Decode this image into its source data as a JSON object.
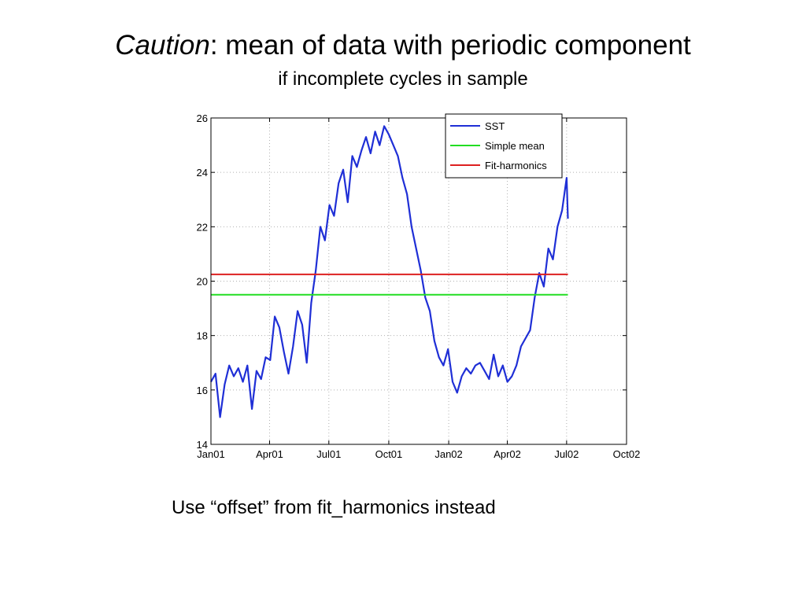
{
  "slide": {
    "title_italic": "Caution",
    "title_rest": ": mean of data with periodic component",
    "subtitle": "if incomplete cycles in sample",
    "note": "Use “offset” from fit_harmonics instead"
  },
  "chart_data": {
    "type": "line",
    "title": "",
    "xlabel": "",
    "ylabel": "",
    "xlim": [
      "Jan01",
      "Oct02"
    ],
    "ylim": [
      14,
      26
    ],
    "x_ticks": [
      "Jan01",
      "Apr01",
      "Jul01",
      "Oct01",
      "Jan02",
      "Apr02",
      "Jul02",
      "Oct02"
    ],
    "y_ticks": [
      14,
      16,
      18,
      20,
      22,
      24,
      26
    ],
    "grid": true,
    "legend_position": "top-right",
    "series": [
      {
        "name": "SST",
        "color": "#1f2fd6",
        "kind": "line",
        "x": [
          "2001-01-01",
          "2001-01-08",
          "2001-01-15",
          "2001-01-22",
          "2001-01-29",
          "2001-02-05",
          "2001-02-12",
          "2001-02-19",
          "2001-02-26",
          "2001-03-05",
          "2001-03-12",
          "2001-03-19",
          "2001-03-26",
          "2001-04-02",
          "2001-04-09",
          "2001-04-16",
          "2001-04-23",
          "2001-04-30",
          "2001-05-07",
          "2001-05-14",
          "2001-05-21",
          "2001-05-28",
          "2001-06-04",
          "2001-06-11",
          "2001-06-18",
          "2001-06-25",
          "2001-07-02",
          "2001-07-09",
          "2001-07-16",
          "2001-07-23",
          "2001-07-30",
          "2001-08-06",
          "2001-08-13",
          "2001-08-20",
          "2001-08-27",
          "2001-09-03",
          "2001-09-10",
          "2001-09-17",
          "2001-09-24",
          "2001-10-01",
          "2001-10-08",
          "2001-10-15",
          "2001-10-22",
          "2001-10-29",
          "2001-11-05",
          "2001-11-12",
          "2001-11-19",
          "2001-11-26",
          "2001-12-03",
          "2001-12-10",
          "2001-12-17",
          "2001-12-24",
          "2001-12-31",
          "2002-01-07",
          "2002-01-14",
          "2002-01-21",
          "2002-01-28",
          "2002-02-04",
          "2002-02-11",
          "2002-02-18",
          "2002-02-25",
          "2002-03-04",
          "2002-03-11",
          "2002-03-18",
          "2002-03-25",
          "2002-04-01",
          "2002-04-08",
          "2002-04-15",
          "2002-04-22",
          "2002-04-29",
          "2002-05-06",
          "2002-05-13",
          "2002-05-20",
          "2002-05-27",
          "2002-06-03",
          "2002-06-10",
          "2002-06-17",
          "2002-06-24",
          "2002-07-01",
          "2002-07-03"
        ],
        "values": [
          16.3,
          16.6,
          15.0,
          16.2,
          16.9,
          16.5,
          16.8,
          16.3,
          16.9,
          15.3,
          16.7,
          16.4,
          17.2,
          17.1,
          18.7,
          18.3,
          17.4,
          16.6,
          17.6,
          18.9,
          18.4,
          17.0,
          19.2,
          20.4,
          22.0,
          21.5,
          22.8,
          22.4,
          23.6,
          24.1,
          22.9,
          24.6,
          24.2,
          24.8,
          25.3,
          24.7,
          25.5,
          25.0,
          25.7,
          25.4,
          25.0,
          24.6,
          23.8,
          23.2,
          22.0,
          21.2,
          20.4,
          19.4,
          18.9,
          17.8,
          17.2,
          16.9,
          17.5,
          16.3,
          15.9,
          16.5,
          16.8,
          16.6,
          16.9,
          17.0,
          16.7,
          16.4,
          17.3,
          16.5,
          16.9,
          16.3,
          16.5,
          16.9,
          17.6,
          17.9,
          18.2,
          19.4,
          20.3,
          19.8,
          21.2,
          20.8,
          22.0,
          22.6,
          23.8,
          22.3
        ]
      },
      {
        "name": "Simple mean",
        "color": "#22dd22",
        "kind": "hline",
        "value": 19.5,
        "x_range": [
          "2001-01-01",
          "2002-07-03"
        ]
      },
      {
        "name": "Fit-harmonics",
        "color": "#dd2020",
        "kind": "hline",
        "value": 20.25,
        "x_range": [
          "2001-01-01",
          "2002-07-03"
        ]
      }
    ]
  }
}
